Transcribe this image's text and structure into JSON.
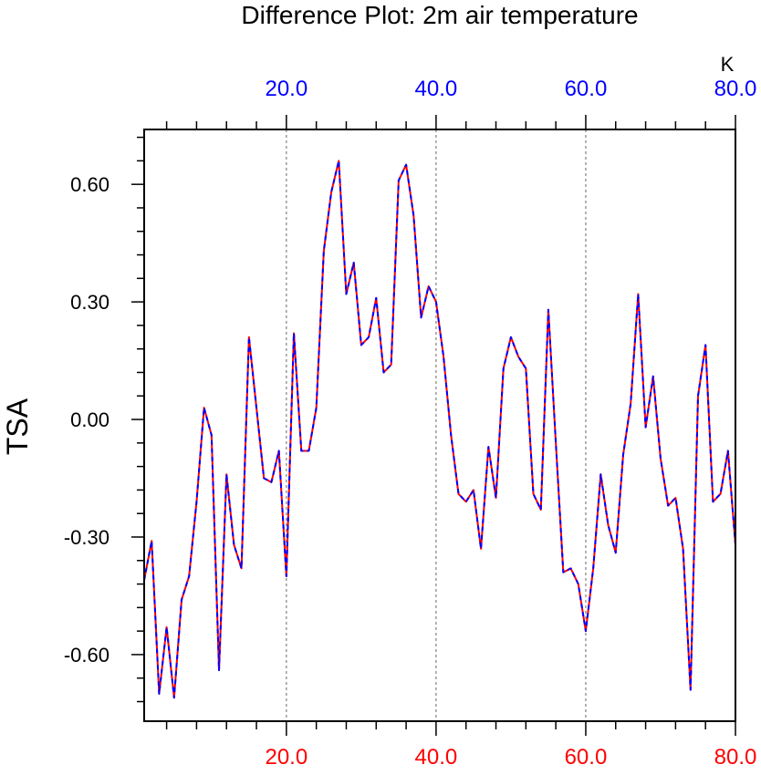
{
  "title": "Difference Plot: 2m air temperature",
  "units": "K",
  "colors": {
    "series_a": "#ff0000",
    "series_b": "#0000ff",
    "top_axis_labels": "#0000ff",
    "bottom_axis_labels": "#ff0000",
    "axis": "#000000",
    "grid": "#808080"
  },
  "chart_data": {
    "type": "line",
    "title": "Difference Plot: 2m air temperature",
    "xlabel": "",
    "ylabel": "TSA",
    "units": "K",
    "xlim": [
      1,
      80
    ],
    "ylim": [
      -0.77,
      0.74
    ],
    "x_ticks": [
      20.0,
      40.0,
      60.0,
      80.0
    ],
    "x_tick_labels": [
      "20.0",
      "40.0",
      "60.0",
      "80.0"
    ],
    "top_x_ticks": [
      20.0,
      40.0,
      60.0,
      80.0
    ],
    "top_x_tick_labels": [
      "20.0",
      "40.0",
      "60.0",
      "80.0"
    ],
    "y_ticks": [
      -0.6,
      -0.3,
      0.0,
      0.3,
      0.6
    ],
    "y_tick_labels": [
      "-0.60",
      "-0.30",
      "0.00",
      "0.30",
      "0.60"
    ],
    "grid": "vertical dashed lines at 20, 40, 60",
    "line_style": "blue dashed line overlaid on red solid line (identical series)",
    "x": [
      1,
      2,
      3,
      4,
      5,
      6,
      7,
      8,
      9,
      10,
      11,
      12,
      13,
      14,
      15,
      16,
      17,
      18,
      19,
      20,
      21,
      22,
      23,
      24,
      25,
      26,
      27,
      28,
      29,
      30,
      31,
      32,
      33,
      34,
      35,
      36,
      37,
      38,
      39,
      40,
      41,
      42,
      43,
      44,
      45,
      46,
      47,
      48,
      49,
      50,
      51,
      52,
      53,
      54,
      55,
      56,
      57,
      58,
      59,
      60,
      61,
      62,
      63,
      64,
      65,
      66,
      67,
      68,
      69,
      70,
      71,
      72,
      73,
      74,
      75,
      76,
      77,
      78,
      79,
      80
    ],
    "series": [
      {
        "values": [
          -0.41,
          -0.31,
          -0.7,
          -0.53,
          -0.71,
          -0.46,
          -0.4,
          -0.21,
          0.03,
          -0.04,
          -0.64,
          -0.14,
          -0.32,
          -0.38,
          0.21,
          0.03,
          -0.15,
          -0.16,
          -0.08,
          -0.4,
          0.22,
          -0.08,
          -0.08,
          0.03,
          0.43,
          0.58,
          0.66,
          0.32,
          0.4,
          0.19,
          0.21,
          0.31,
          0.12,
          0.14,
          0.61,
          0.65,
          0.52,
          0.26,
          0.34,
          0.3,
          0.16,
          -0.04,
          -0.19,
          -0.21,
          -0.18,
          -0.33,
          -0.07,
          -0.2,
          0.13,
          0.21,
          0.16,
          0.13,
          -0.19,
          -0.23,
          0.28,
          -0.06,
          -0.39,
          -0.38,
          -0.42,
          -0.54,
          -0.38,
          -0.14,
          -0.27,
          -0.34,
          -0.09,
          0.04,
          0.32,
          -0.02,
          0.11,
          -0.1,
          -0.22,
          -0.2,
          -0.33,
          -0.69,
          0.06,
          0.19,
          -0.21,
          -0.19,
          -0.08,
          -0.32
        ]
      },
      {
        "values": [
          -0.41,
          -0.31,
          -0.7,
          -0.53,
          -0.71,
          -0.46,
          -0.4,
          -0.21,
          0.03,
          -0.04,
          -0.64,
          -0.14,
          -0.32,
          -0.38,
          0.21,
          0.03,
          -0.15,
          -0.16,
          -0.08,
          -0.4,
          0.22,
          -0.08,
          -0.08,
          0.03,
          0.43,
          0.58,
          0.66,
          0.32,
          0.4,
          0.19,
          0.21,
          0.31,
          0.12,
          0.14,
          0.61,
          0.65,
          0.52,
          0.26,
          0.34,
          0.3,
          0.16,
          -0.04,
          -0.19,
          -0.21,
          -0.18,
          -0.33,
          -0.07,
          -0.2,
          0.13,
          0.21,
          0.16,
          0.13,
          -0.19,
          -0.23,
          0.28,
          -0.06,
          -0.39,
          -0.38,
          -0.42,
          -0.54,
          -0.38,
          -0.14,
          -0.27,
          -0.34,
          -0.09,
          0.04,
          0.32,
          -0.02,
          0.11,
          -0.1,
          -0.22,
          -0.2,
          -0.33,
          -0.69,
          0.06,
          0.19,
          -0.21,
          -0.19,
          -0.08,
          -0.32
        ]
      }
    ]
  }
}
